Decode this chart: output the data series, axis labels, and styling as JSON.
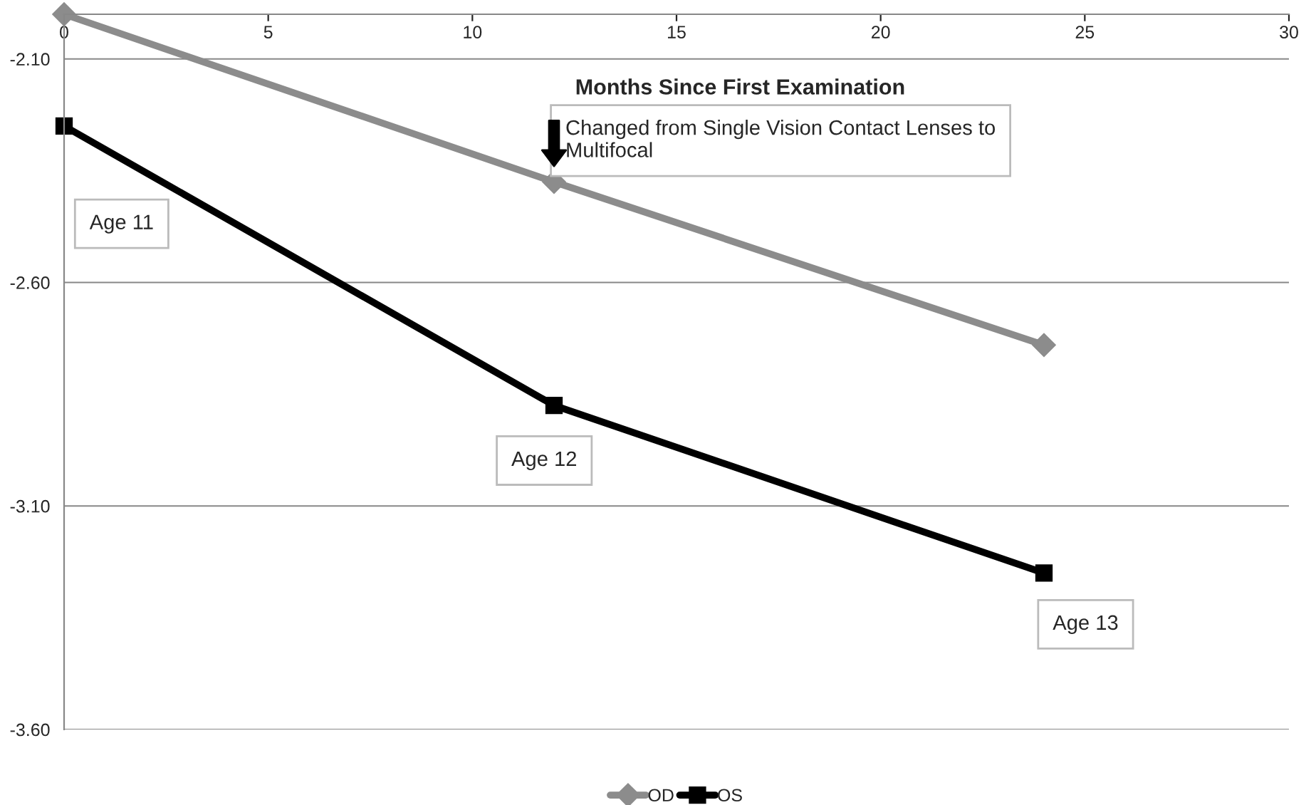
{
  "chart_data": {
    "type": "line",
    "xlabel": "Months Since First Examination",
    "x": [
      0,
      12,
      24
    ],
    "series": [
      {
        "name": "OD",
        "color": "#8c8c8c",
        "values": [
          -2.0,
          -2.375,
          -2.74
        ],
        "marker": "diamond"
      },
      {
        "name": "OS",
        "color": "#000000",
        "values": [
          -2.25,
          -2.875,
          -3.25
        ],
        "marker": "square"
      }
    ],
    "xlim": [
      0,
      30
    ],
    "xticks": [
      0,
      5,
      10,
      15,
      20,
      25,
      30
    ],
    "ylim": [
      -3.6,
      -2.0
    ],
    "yticks": [
      {
        "value": -2.1,
        "label": "-2.10"
      },
      {
        "value": -2.6,
        "label": "-2.60"
      },
      {
        "value": -3.1,
        "label": "-3.10"
      },
      {
        "value": -3.6,
        "label": "-3.60"
      }
    ],
    "grid": "y",
    "legend": "bottom",
    "line_style": "solid",
    "annotations": [
      "Age 11",
      "Age 12",
      "Age 13",
      {
        "text": "Changed from Single Vision Contact Lenses to\nMultifocal",
        "x": 12,
        "y": -2.375
      }
    ]
  }
}
